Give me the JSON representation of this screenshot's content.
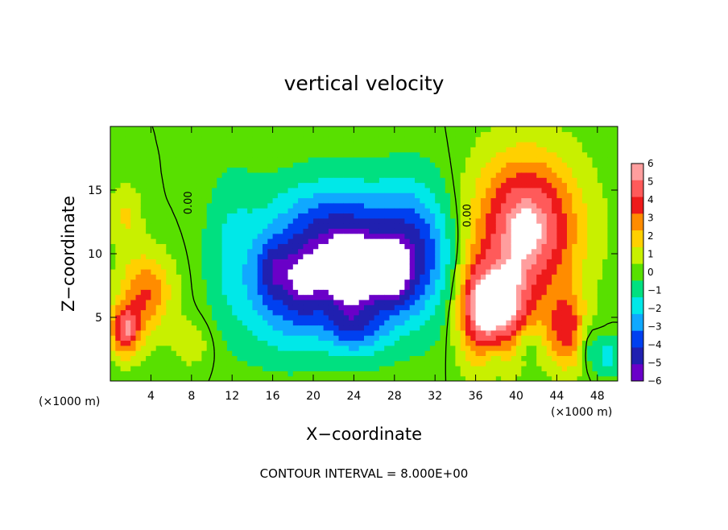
{
  "chart_data": {
    "type": "heatmap",
    "title": "vertical velocity",
    "xlabel": "X−coordinate",
    "ylabel": "Z−coordinate",
    "x_unit": "(×1000 m)",
    "y_unit": "(×1000 m)",
    "xlim": [
      0,
      50
    ],
    "ylim": [
      0,
      20
    ],
    "x_ticks": [
      4,
      8,
      12,
      16,
      20,
      24,
      28,
      32,
      36,
      40,
      44,
      48
    ],
    "y_ticks": [
      5,
      10,
      15
    ],
    "colorbar": {
      "levels": [
        6,
        5,
        4,
        3,
        2,
        1,
        0,
        -1,
        -2,
        -3,
        -4,
        -5,
        -6
      ],
      "labels": [
        "6",
        "5",
        "4",
        "3",
        "2",
        "1",
        "0",
        "−1",
        "−2",
        "−3",
        "−4",
        "−5",
        "−6"
      ],
      "colors": [
        "#ff9e9e",
        "#ff5a5a",
        "#ee1a1a",
        "#ff8c00",
        "#ffd000",
        "#c8f000",
        "#58e000",
        "#00e080",
        "#00e8e8",
        "#10a8ff",
        "#0040f0",
        "#2020b0",
        "#6a00c8"
      ]
    },
    "contour_labels": [
      "0.00",
      "0.00"
    ],
    "footer": "CONTOUR INTERVAL = 8.000E+00",
    "fields": [
      {
        "x": 25,
        "y": 9,
        "value": -4.5,
        "sx": 7.5,
        "sy": 5
      },
      {
        "x": 21,
        "y": 12.5,
        "value": -2.5,
        "sx": 6,
        "sy": 3.5
      },
      {
        "x": 30,
        "y": 11,
        "value": -2.5,
        "sx": 3.5,
        "sy": 5
      },
      {
        "x": 17,
        "y": 6,
        "value": -2.5,
        "sx": 4,
        "sy": 4
      },
      {
        "x": 16,
        "y": 9,
        "value": -2.5,
        "sx": 1.8,
        "sy": 2.5
      },
      {
        "x": 24,
        "y": 4,
        "value": -2.5,
        "sx": 3,
        "sy": 2
      },
      {
        "x": 23.5,
        "y": 8,
        "value": -3,
        "sx": 3,
        "sy": 3
      },
      {
        "x": 19,
        "y": 8,
        "value": -2,
        "sx": 1.8,
        "sy": 3
      },
      {
        "x": 28,
        "y": 8,
        "value": -2,
        "sx": 1.8,
        "sy": 2.5
      },
      {
        "x": 12,
        "y": 10,
        "value": -1.5,
        "sx": 2.5,
        "sy": 6
      },
      {
        "x": 41,
        "y": 12,
        "value": 6.5,
        "sx": 5,
        "sy": 5.5
      },
      {
        "x": 38.5,
        "y": 5.5,
        "value": 5.5,
        "sx": 3,
        "sy": 3.5
      },
      {
        "x": 36,
        "y": 6,
        "value": 3.5,
        "sx": 2,
        "sy": 4
      },
      {
        "x": 45,
        "y": 4,
        "value": 4,
        "sx": 2,
        "sy": 3
      },
      {
        "x": 3.5,
        "y": 7,
        "value": 3.5,
        "sx": 2.5,
        "sy": 3
      },
      {
        "x": 1.5,
        "y": 4,
        "value": 5,
        "sx": 1.5,
        "sy": 2
      },
      {
        "x": 1.5,
        "y": 13,
        "value": 1.6,
        "sx": 1.5,
        "sy": 2.5
      },
      {
        "x": 8,
        "y": 3,
        "value": 1,
        "sx": 2,
        "sy": 2
      },
      {
        "x": 41,
        "y": 3,
        "value": -1.5,
        "sx": 1.2,
        "sy": 1.5
      },
      {
        "x": 38,
        "y": 2,
        "value": -1,
        "sx": 1,
        "sy": 1.5
      },
      {
        "x": 47,
        "y": 3,
        "value": -1.5,
        "sx": 1,
        "sy": 2
      },
      {
        "x": 49,
        "y": 2,
        "value": -2,
        "sx": 1.2,
        "sy": 1.5
      }
    ]
  }
}
